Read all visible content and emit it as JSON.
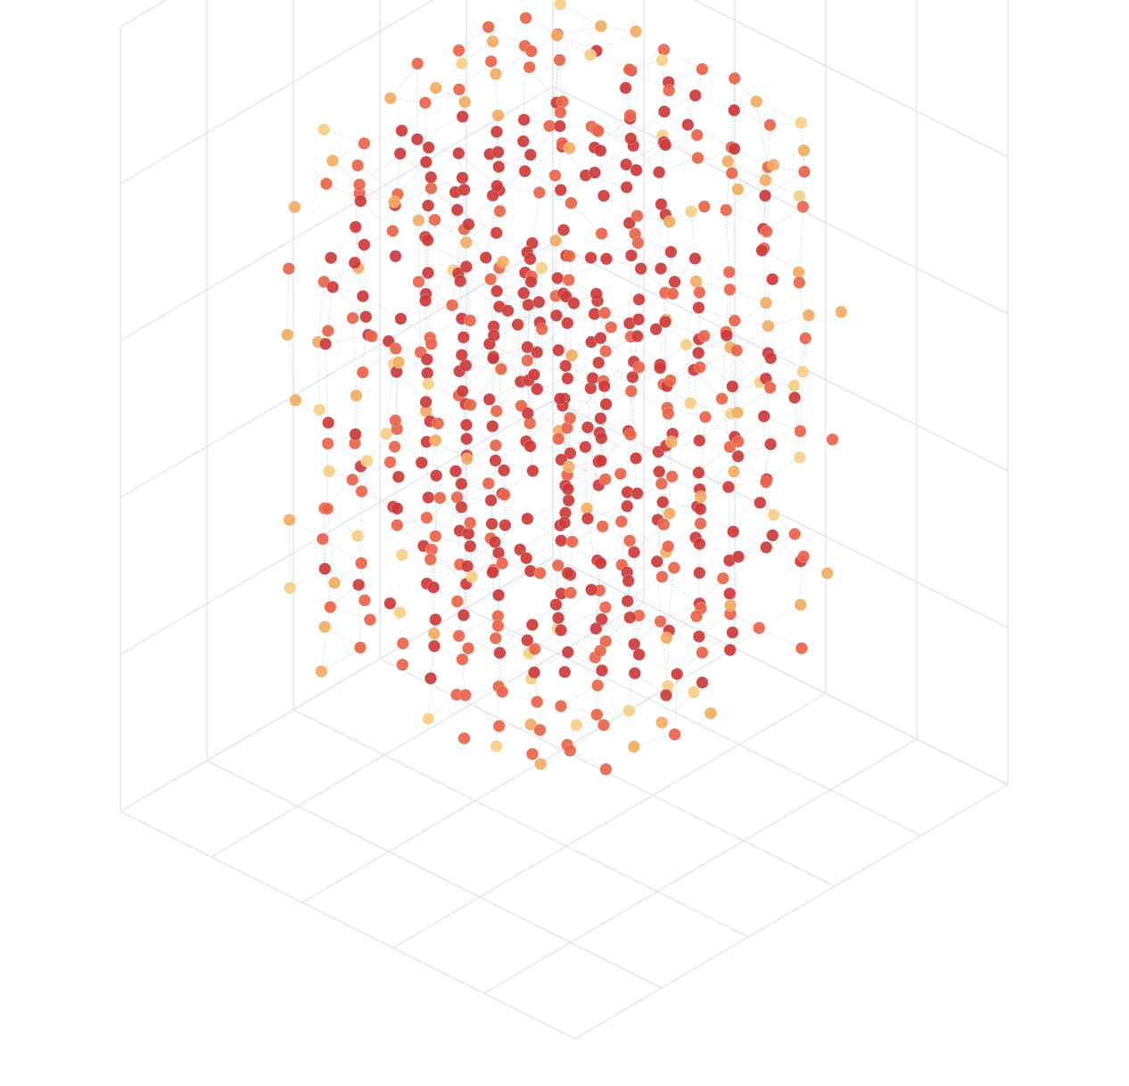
{
  "chart_data": {
    "type": "scatter",
    "subtype": "3d-scatter-with-network-edges",
    "title": "",
    "xlabel": "",
    "ylabel": "",
    "zlabel": "",
    "grid": true,
    "legend": "none",
    "axis_ticks_shown": false,
    "grid_divisions": {
      "x": 5,
      "y": 5,
      "z": 5
    },
    "lattice_size": [
      11,
      11,
      11
    ],
    "point_shape": "roughly cubic cloud of nodes on a jittered grid with short edges between neighbours",
    "colors": {
      "grid": "#dfe4ee",
      "edge": "#aab3c5",
      "marker_inner": "#cc3b3b",
      "marker_mid": "#e8654a",
      "marker_outer": "#f2ab62",
      "marker_edge_light": "#f6cf86"
    }
  }
}
